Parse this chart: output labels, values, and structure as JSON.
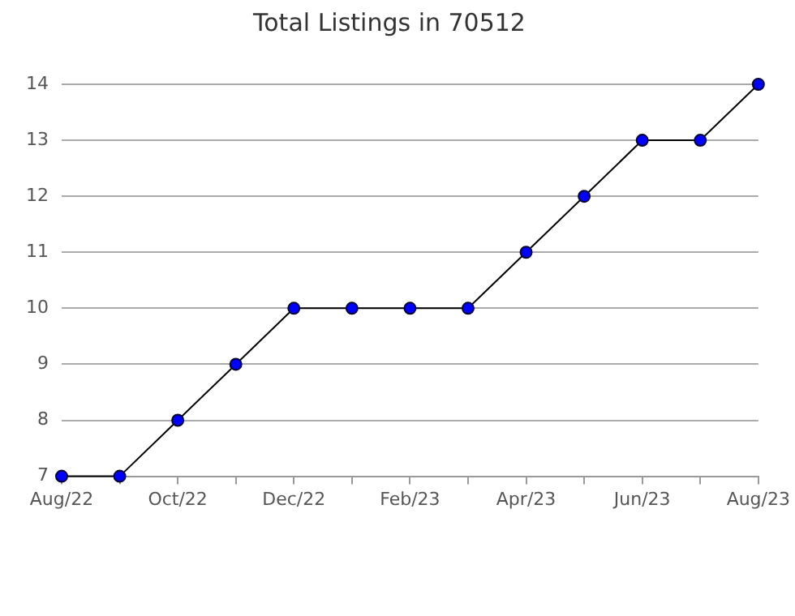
{
  "chart_data": {
    "type": "line",
    "title": "Total Listings in 70512",
    "categories": [
      "Aug/22",
      null,
      "Oct/22",
      null,
      "Dec/22",
      null,
      "Feb/23",
      null,
      "Apr/23",
      null,
      "Jun/23",
      null,
      "Aug/23"
    ],
    "series": [
      {
        "color": "#0000ff",
        "values": [
          7,
          7,
          8,
          9,
          10,
          10,
          10,
          10,
          11,
          12,
          13,
          13,
          14
        ]
      }
    ],
    "ylim": [
      7,
      14
    ],
    "yticks": [
      7,
      8,
      9,
      10,
      11,
      12,
      13,
      14
    ],
    "grid": "y",
    "legend": false,
    "marker": "circle",
    "line_style": "solid"
  }
}
